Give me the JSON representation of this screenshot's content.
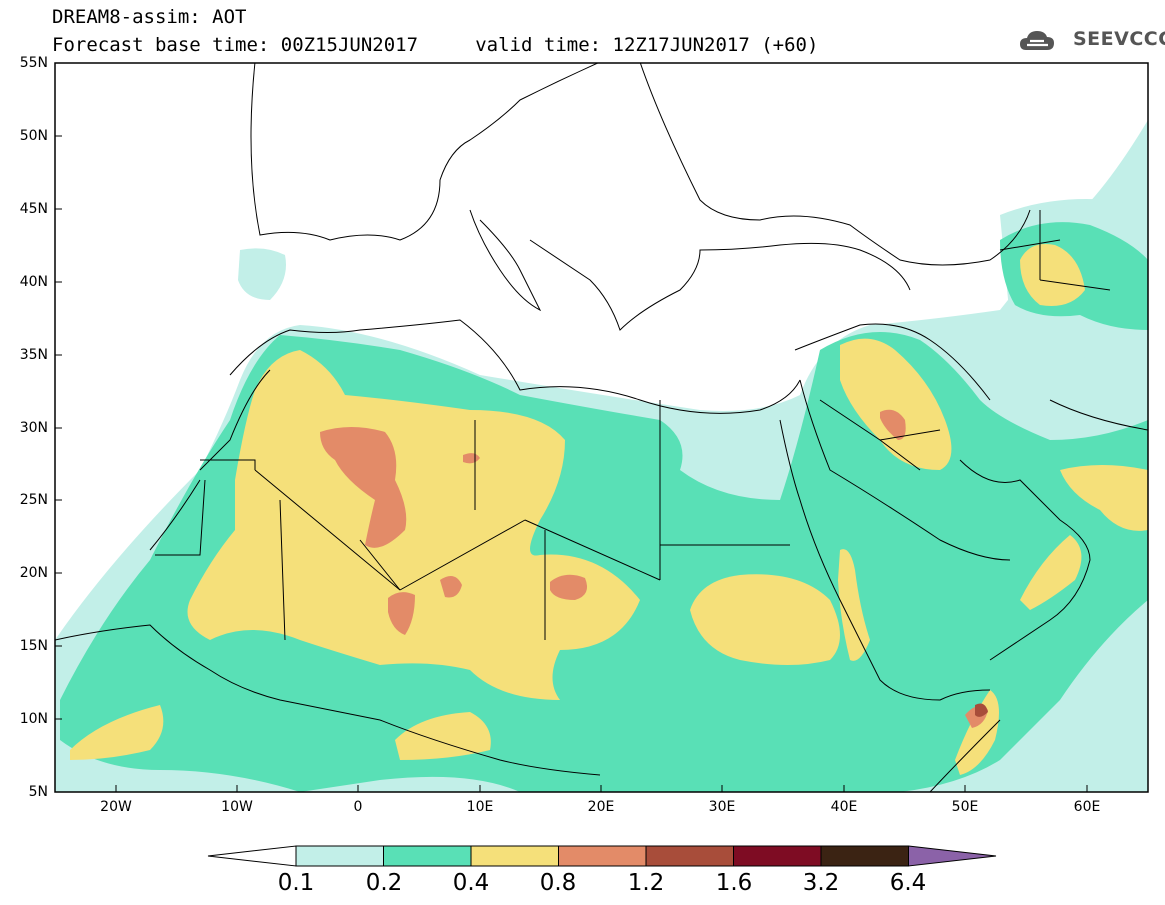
{
  "header": {
    "title": "DREAM8-assim: AOT",
    "subtitle": "Forecast base time: 00Z15JUN2017     valid time: 12Z17JUN2017 (+60)",
    "logo_text": "SEEVCCC"
  },
  "map": {
    "lat_labels": [
      "55N",
      "50N",
      "45N",
      "40N",
      "35N",
      "30N",
      "25N",
      "20N",
      "15N",
      "10N",
      "5N"
    ],
    "lon_labels": [
      "20W",
      "10W",
      "0",
      "10E",
      "20E",
      "30E",
      "40E",
      "50E",
      "60E"
    ],
    "colors": {
      "land": "#ffffff",
      "ocean": "#ffffff",
      "border": "#000000"
    }
  },
  "colorbar": {
    "labels": [
      "0.1",
      "0.2",
      "0.4",
      "0.8",
      "1.2",
      "1.6",
      "3.2",
      "6.4"
    ],
    "colors": [
      "#ffffff",
      "#c2efe8",
      "#59e0b6",
      "#f5e07a",
      "#e38b68",
      "#a84d3a",
      "#7e0c23",
      "#3b2313",
      "#8b62a8"
    ]
  }
}
